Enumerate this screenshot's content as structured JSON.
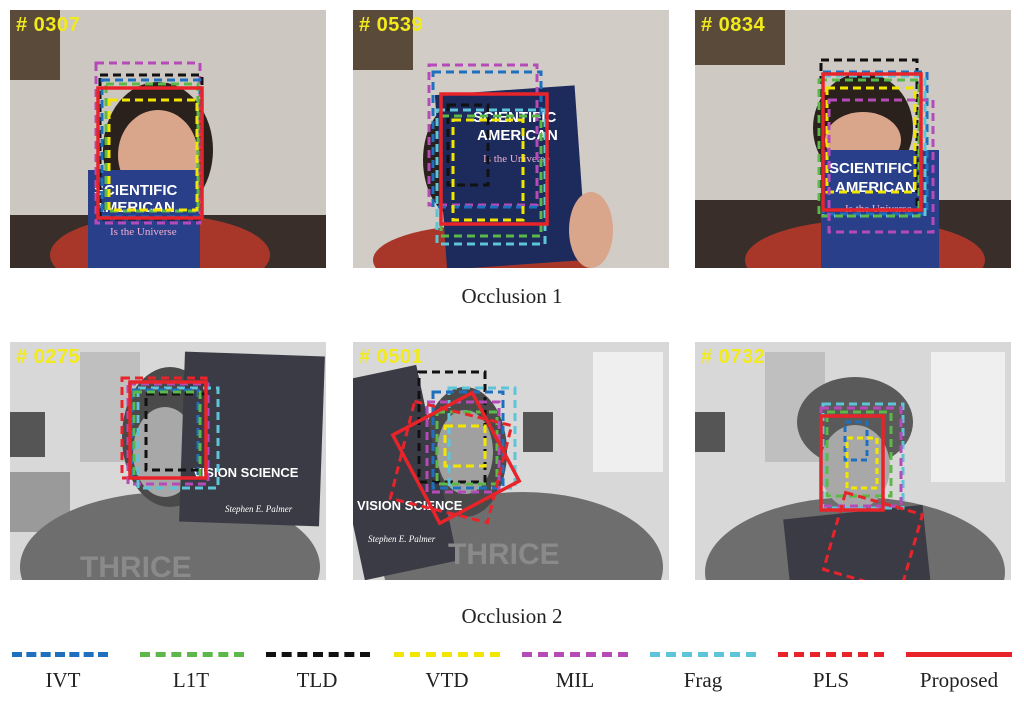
{
  "rows": [
    {
      "caption": "Occlusion 1",
      "frames": [
        {
          "number": "# 0307"
        },
        {
          "number": "# 0539"
        },
        {
          "number": "# 0834"
        }
      ]
    },
    {
      "caption": "Occlusion 2",
      "frames": [
        {
          "number": "# 0275"
        },
        {
          "number": "# 0501"
        },
        {
          "number": "# 0732"
        }
      ]
    }
  ],
  "magazine_text": {
    "title1": "SCIENTIFIC",
    "title2": "AMERICAN",
    "tagline": "Is the Universe"
  },
  "book_text": {
    "title": "VISION SCIENCE",
    "author": "Stephen E. Palmer"
  },
  "shirt_text": "THRICE",
  "legend": [
    {
      "label": "IVT",
      "color": "#1f6fbf",
      "style": "dashed"
    },
    {
      "label": "L1T",
      "color": "#5cb848",
      "style": "dashed"
    },
    {
      "label": "TLD",
      "color": "#111111",
      "style": "dashed"
    },
    {
      "label": "VTD",
      "color": "#f2e600",
      "style": "dashed"
    },
    {
      "label": "MIL",
      "color": "#b54bb8",
      "style": "dashed"
    },
    {
      "label": "Frag",
      "color": "#5ec4d8",
      "style": "dashed"
    },
    {
      "label": "PLS",
      "color": "#e8242a",
      "style": "dashed"
    },
    {
      "label": "Proposed",
      "color": "#e8242a",
      "style": "solid"
    }
  ]
}
